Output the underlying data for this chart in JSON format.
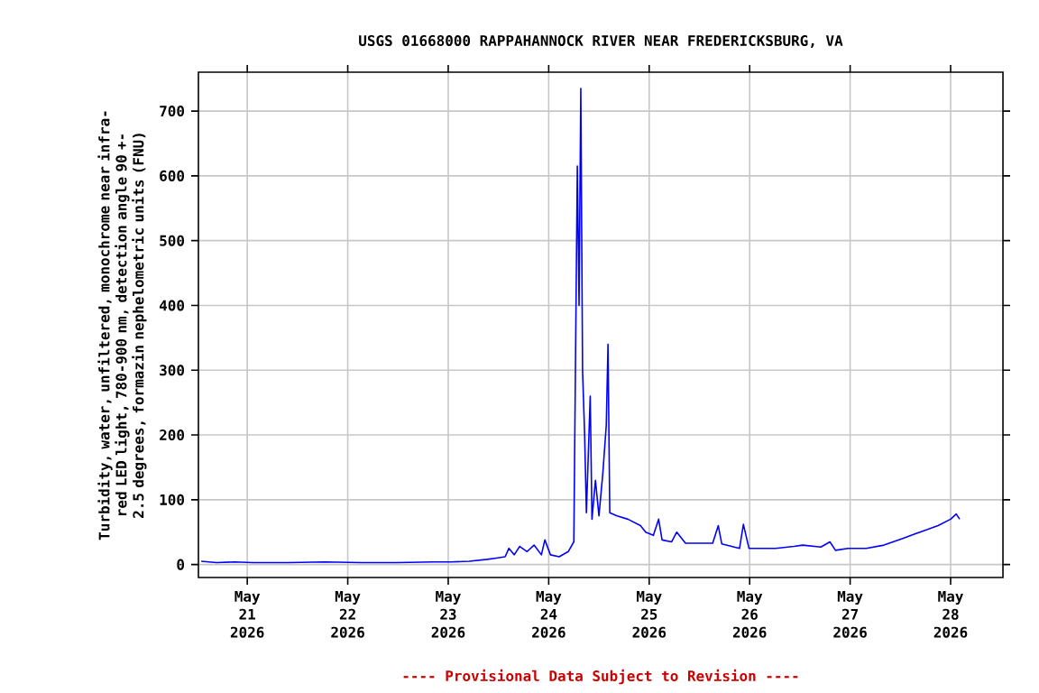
{
  "chart_data": {
    "type": "line",
    "title": "USGS 01668000 RAPPAHANNOCK RIVER NEAR FREDERICKSBURG, VA",
    "ylabel": "Turbidity, water, unfiltered, monochrome near infra-red LED light, 780-900 nm, detection angle 90 +-2.5 degrees, formazin nephelometric units (FNU)",
    "annotations": [
      "---- Provisional Data Subject to Revision ----"
    ],
    "x": [
      "2026-05-20T13:00",
      "2026-05-20T16:40",
      "2026-05-20T21:00",
      "2026-05-21T01:20",
      "2026-05-21T09:50",
      "2026-05-21T18:30",
      "2026-05-22T03:10",
      "2026-05-22T11:45",
      "2026-05-22T20:25",
      "2026-05-23T00:40",
      "2026-05-23T05:00",
      "2026-05-23T09:20",
      "2026-05-23T11:30",
      "2026-05-23T13:35",
      "2026-05-23T14:30",
      "2026-05-23T15:45",
      "2026-05-23T17:05",
      "2026-05-23T18:50",
      "2026-05-23T20:30",
      "2026-05-23T22:15",
      "2026-05-23T23:05",
      "2026-05-24T00:25",
      "2026-05-24T02:30",
      "2026-05-24T04:40",
      "2026-05-24T06:00",
      "2026-05-24T06:50",
      "2026-05-24T07:15",
      "2026-05-24T07:40",
      "2026-05-24T08:05",
      "2026-05-24T08:35",
      "2026-05-24T09:00",
      "2026-05-24T09:55",
      "2026-05-24T10:20",
      "2026-05-24T11:10",
      "2026-05-24T12:00",
      "2026-05-24T12:55",
      "2026-05-24T13:45",
      "2026-05-24T14:10",
      "2026-05-24T14:35",
      "2026-05-24T16:20",
      "2026-05-24T18:55",
      "2026-05-24T21:55",
      "2026-05-24T23:10",
      "2026-05-25T01:00",
      "2026-05-25T02:15",
      "2026-05-25T03:05",
      "2026-05-25T05:20",
      "2026-05-25T06:35",
      "2026-05-25T08:40",
      "2026-05-25T15:10",
      "2026-05-25T16:30",
      "2026-05-25T17:20",
      "2026-05-25T21:35",
      "2026-05-25T22:30",
      "2026-05-25T23:50",
      "2026-05-26T06:10",
      "2026-05-26T10:35",
      "2026-05-26T12:40",
      "2026-05-26T17:00",
      "2026-05-26T19:10",
      "2026-05-26T20:30",
      "2026-05-26T23:30",
      "2026-05-27T03:50",
      "2026-05-27T08:05",
      "2026-05-27T12:25",
      "2026-05-27T16:40",
      "2026-05-27T21:00",
      "2026-05-28T00:00",
      "2026-05-28T01:20",
      "2026-05-28T02:10"
    ],
    "series": [
      {
        "color": "#0000ff",
        "values": [
          5,
          3,
          4,
          3,
          3,
          4,
          3,
          3,
          4,
          4,
          5,
          8,
          10,
          12,
          25,
          15,
          28,
          20,
          30,
          15,
          38,
          15,
          12,
          20,
          35,
          615,
          400,
          735,
          300,
          200,
          80,
          260,
          70,
          130,
          75,
          140,
          215,
          340,
          80,
          75,
          70,
          60,
          50,
          45,
          70,
          38,
          35,
          50,
          33,
          33,
          60,
          32,
          25,
          62,
          25,
          25,
          28,
          30,
          27,
          35,
          22,
          25,
          25,
          30,
          40,
          50,
          60,
          70,
          78,
          70
        ]
      }
    ],
    "xlim": [
      "2026-05-20T12:20",
      "2026-05-28T12:30"
    ],
    "xticks": [
      {
        "value": "2026-05-21",
        "label": "May 21 2026"
      },
      {
        "value": "2026-05-22",
        "label": "May 22 2026"
      },
      {
        "value": "2026-05-23",
        "label": "May 23 2026"
      },
      {
        "value": "2026-05-24",
        "label": "May 24 2026"
      },
      {
        "value": "2026-05-25",
        "label": "May 25 2026"
      },
      {
        "value": "2026-05-26",
        "label": "May 26 2026"
      },
      {
        "value": "2026-05-27",
        "label": "May 27 2026"
      },
      {
        "value": "2026-05-28",
        "label": "May 28 2026"
      }
    ],
    "ylim": [
      -20,
      760
    ],
    "yticks": [
      0,
      100,
      200,
      300,
      400,
      500,
      600,
      700
    ],
    "grid": true,
    "line_style": "solid",
    "marker": "none"
  }
}
